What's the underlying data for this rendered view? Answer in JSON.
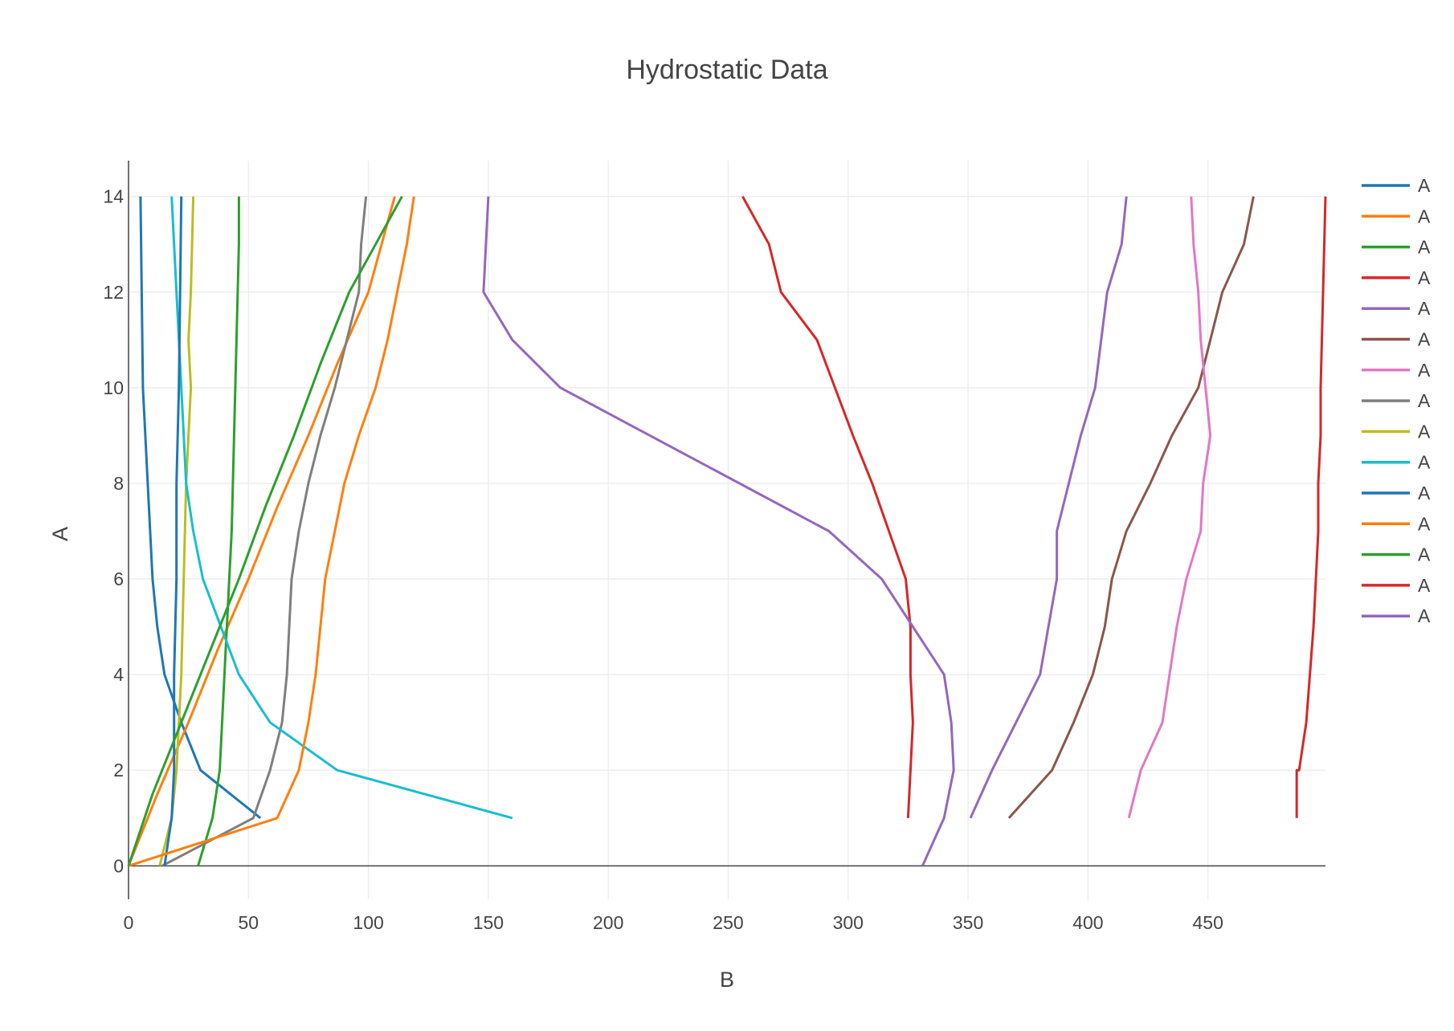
{
  "chart_data": {
    "type": "line",
    "title": "Hydrostatic Data",
    "xlabel": "B",
    "ylabel": "A",
    "xlim": [
      0,
      499
    ],
    "ylim": [
      -0.7,
      14.75
    ],
    "xticks": [
      0,
      50,
      100,
      150,
      200,
      250,
      300,
      350,
      400,
      450
    ],
    "yticks": [
      0,
      2,
      4,
      6,
      8,
      10,
      12,
      14
    ],
    "grid": true,
    "legend_position": "right",
    "series": [
      {
        "name": "A",
        "color": "#1f77b4",
        "x": [
          55,
          30,
          22,
          15,
          12,
          10,
          9,
          8,
          7,
          6,
          5
        ],
        "y": [
          1,
          2,
          3,
          4,
          5,
          6,
          7,
          8,
          9,
          10,
          14
        ]
      },
      {
        "name": "A",
        "color": "#ff7f0e",
        "x": [
          0,
          12,
          25,
          37,
          50,
          62,
          75,
          87,
          100,
          111
        ],
        "y": [
          0,
          1.5,
          3,
          4.5,
          6,
          7.5,
          9,
          10.5,
          12,
          14
        ]
      },
      {
        "name": "A",
        "color": "#2ca02c",
        "x": [
          29,
          35,
          38,
          39,
          40,
          41,
          42,
          43,
          44,
          45,
          46,
          46
        ],
        "y": [
          0,
          1,
          2,
          3,
          4,
          5,
          6,
          7,
          9,
          11,
          13,
          14
        ]
      },
      {
        "name": "A",
        "color": "#d62728",
        "x": [
          325,
          327,
          326,
          326,
          324,
          317,
          310,
          302,
          287,
          272,
          267,
          256
        ],
        "y": [
          1,
          3,
          4,
          5,
          6,
          7,
          8,
          9,
          11,
          12,
          13,
          14
        ]
      },
      {
        "name": "A",
        "color": "#9467bd",
        "x": [
          331,
          340,
          344,
          343,
          340,
          314,
          292,
          180,
          160,
          148,
          150
        ],
        "y": [
          0,
          1,
          2,
          3,
          4,
          6,
          7,
          10,
          11,
          12,
          14
        ]
      },
      {
        "name": "A",
        "color": "#8c564b",
        "x": [
          367,
          385,
          394,
          402,
          407,
          410,
          416,
          426,
          435,
          446,
          451,
          456,
          465,
          469
        ],
        "y": [
          1,
          2,
          3,
          4,
          5,
          6,
          7,
          8,
          9,
          10,
          11,
          12,
          13,
          14
        ]
      },
      {
        "name": "A",
        "color": "#e377c2",
        "x": [
          417,
          422,
          431,
          434,
          437,
          441,
          447,
          448,
          451,
          449,
          447,
          446,
          444,
          443
        ],
        "y": [
          1,
          2,
          3,
          4,
          5,
          6,
          7,
          8,
          9,
          10,
          11,
          12,
          13,
          14
        ]
      },
      {
        "name": "A",
        "color": "#7f7f7f",
        "x": [
          14,
          52,
          59,
          64,
          66,
          68,
          71,
          75,
          80,
          86,
          91,
          96,
          97,
          99
        ],
        "y": [
          0,
          1,
          2,
          3,
          4,
          6,
          7,
          8,
          9,
          10,
          11,
          12,
          13,
          14
        ]
      },
      {
        "name": "A",
        "color": "#bcbd22",
        "x": [
          13,
          18,
          20,
          21,
          22,
          23,
          24,
          26,
          25,
          26,
          27
        ],
        "y": [
          0,
          1,
          2,
          3,
          4,
          6,
          8,
          10,
          11,
          12,
          14
        ]
      },
      {
        "name": "A",
        "color": "#17becf",
        "x": [
          160,
          87,
          59,
          46,
          31,
          27,
          24,
          22,
          20,
          18
        ],
        "y": [
          1,
          2,
          3,
          4,
          6,
          7,
          8,
          10,
          12,
          14
        ]
      },
      {
        "name": "A",
        "color": "#1f77b4",
        "x": [
          15,
          18,
          19,
          19,
          20,
          20,
          21,
          22
        ],
        "y": [
          0,
          1,
          2,
          4,
          6,
          8,
          10,
          14
        ]
      },
      {
        "name": "A",
        "color": "#ff7f0e",
        "x": [
          0,
          62,
          71,
          75,
          78,
          82,
          86,
          90,
          96,
          103,
          108,
          112,
          116,
          119
        ],
        "y": [
          0,
          1,
          2,
          3,
          4,
          6,
          7,
          8,
          9,
          10,
          11,
          12,
          13,
          14
        ]
      },
      {
        "name": "A",
        "color": "#2ca02c",
        "x": [
          0,
          10,
          22,
          34,
          46,
          57,
          69,
          80,
          92,
          103,
          114
        ],
        "y": [
          0,
          1.5,
          3,
          4.5,
          6,
          7.5,
          9,
          10.5,
          12,
          13,
          14
        ]
      },
      {
        "name": "A",
        "color": "#d62728",
        "x": [
          487,
          487,
          488,
          491,
          494,
          495,
          496,
          496,
          497,
          497,
          498,
          499
        ],
        "y": [
          1,
          2,
          2,
          3,
          5,
          6,
          7,
          8,
          9,
          10,
          12,
          14
        ]
      },
      {
        "name": "A",
        "color": "#9467bd",
        "x": [
          351,
          360,
          370,
          380,
          387,
          387,
          392,
          397,
          403,
          408,
          414,
          416
        ],
        "y": [
          1,
          2,
          3,
          4,
          6,
          7,
          8,
          9,
          10,
          12,
          13,
          14
        ]
      }
    ]
  }
}
